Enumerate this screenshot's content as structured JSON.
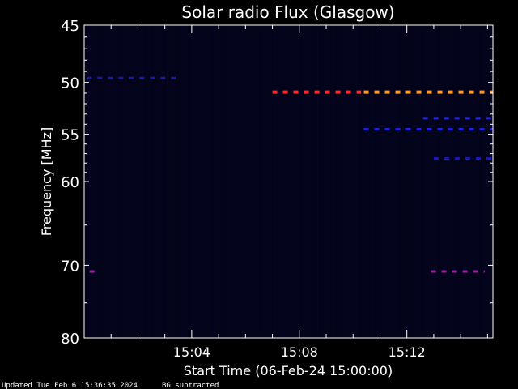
{
  "chart_data": {
    "type": "heatmap",
    "title": "Solar radio Flux (Glasgow)",
    "xlabel": "Start Time (06-Feb-24 15:00:00)",
    "ylabel": "Frequency [MHz]",
    "x_range_minutes": [
      0,
      15.2
    ],
    "x_ticks": [
      {
        "minute": 4,
        "label": "15:04"
      },
      {
        "minute": 8,
        "label": "15:08"
      },
      {
        "minute": 12,
        "label": "15:12"
      }
    ],
    "y_range_mhz": [
      45,
      80
    ],
    "y_scale": "log",
    "y_ticks": [
      45,
      50,
      55,
      60,
      70,
      80
    ],
    "background_color": "#03031a",
    "emission_bands": [
      {
        "freq_mhz": 49.6,
        "start_min": 0.1,
        "end_min": 3.6,
        "intensity": "low",
        "color": "#1a1aa8"
      },
      {
        "freq_mhz": 50.9,
        "start_min": 7.0,
        "end_min": 10.3,
        "intensity": "high",
        "color": "#ff2a2a"
      },
      {
        "freq_mhz": 50.9,
        "start_min": 10.4,
        "end_min": 15.2,
        "intensity": "very high",
        "color": "#ff9a2a"
      },
      {
        "freq_mhz": 53.4,
        "start_min": 12.6,
        "end_min": 15.2,
        "intensity": "low",
        "color": "#2a2ad8"
      },
      {
        "freq_mhz": 54.5,
        "start_min": 10.4,
        "end_min": 15.2,
        "intensity": "medium",
        "color": "#2020e0"
      },
      {
        "freq_mhz": 57.5,
        "start_min": 13.0,
        "end_min": 15.2,
        "intensity": "low",
        "color": "#1a1ab0"
      },
      {
        "freq_mhz": 70.8,
        "start_min": 12.9,
        "end_min": 14.9,
        "intensity": "medium",
        "color": "#9a20a0"
      },
      {
        "freq_mhz": 70.8,
        "start_min": 0.2,
        "end_min": 0.4,
        "intensity": "medium",
        "color": "#9a20a0"
      }
    ]
  },
  "footer": {
    "updated": "Updated Tue Feb  6 15:36:35 2024",
    "note": "BG subtracted"
  }
}
